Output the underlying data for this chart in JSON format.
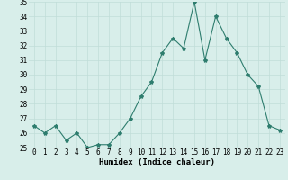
{
  "x": [
    0,
    1,
    2,
    3,
    4,
    5,
    6,
    7,
    8,
    9,
    10,
    11,
    12,
    13,
    14,
    15,
    16,
    17,
    18,
    19,
    20,
    21,
    22,
    23
  ],
  "y": [
    26.5,
    26.0,
    26.5,
    25.5,
    26.0,
    25.0,
    25.2,
    25.2,
    26.0,
    27.0,
    28.5,
    29.5,
    31.5,
    32.5,
    31.8,
    35.0,
    31.0,
    34.0,
    32.5,
    31.5,
    30.0,
    29.2,
    26.5,
    26.2
  ],
  "xlabel": "Humidex (Indice chaleur)",
  "ylim": [
    25,
    35
  ],
  "xlim": [
    -0.5,
    23.5
  ],
  "yticks": [
    25,
    26,
    27,
    28,
    29,
    30,
    31,
    32,
    33,
    34,
    35
  ],
  "xticks": [
    0,
    1,
    2,
    3,
    4,
    5,
    6,
    7,
    8,
    9,
    10,
    11,
    12,
    13,
    14,
    15,
    16,
    17,
    18,
    19,
    20,
    21,
    22,
    23
  ],
  "line_color": "#2e7d6e",
  "marker": "*",
  "bg_color": "#d8eeea",
  "grid_color": "#c0ddd8",
  "tick_fontsize": 5.5,
  "xlabel_fontsize": 6.5,
  "linewidth": 0.8,
  "markersize": 3.0
}
